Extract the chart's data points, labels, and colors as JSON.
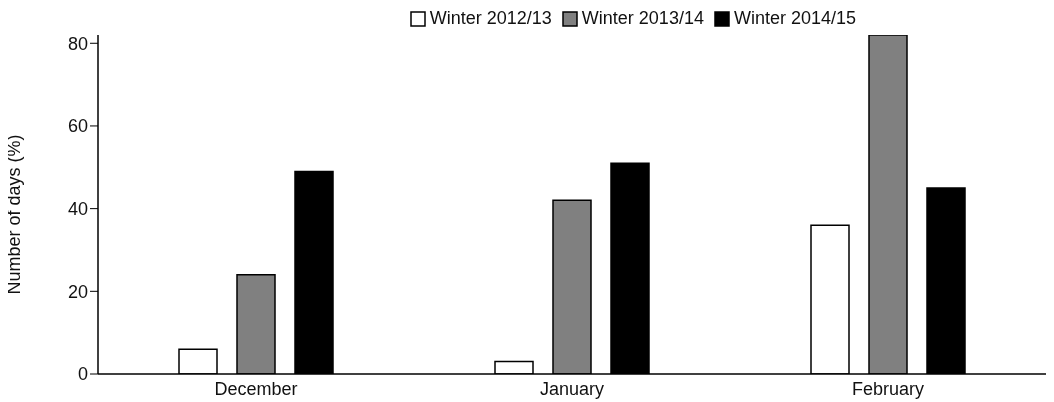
{
  "chart_data": {
    "type": "bar",
    "ylabel": "Number of days (%)",
    "categories": [
      "December",
      "January",
      "February"
    ],
    "series": [
      {
        "name": "Winter 2012/13",
        "color": "#ffffff",
        "values": [
          6,
          3,
          36
        ]
      },
      {
        "name": "Winter 2013/14",
        "color": "#808080",
        "values": [
          24,
          42,
          82
        ]
      },
      {
        "name": "Winter 2014/15",
        "color": "#000000",
        "values": [
          49,
          51,
          45
        ]
      }
    ],
    "ylim": [
      0,
      82
    ],
    "yticks": [
      0,
      20,
      40,
      60,
      80
    ],
    "grid": false,
    "legend": "top right"
  }
}
